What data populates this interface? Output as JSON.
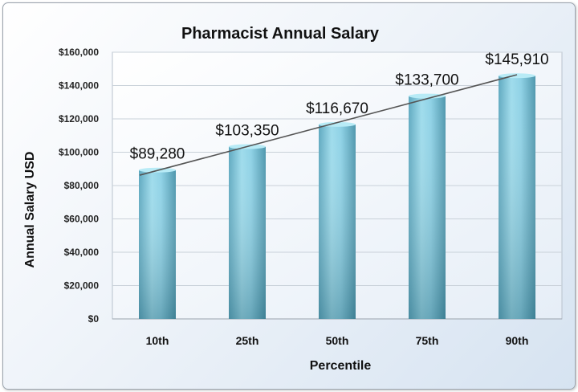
{
  "chart_data": {
    "type": "bar",
    "title": "Pharmacist Annual Salary",
    "xlabel": "Percentile",
    "ylabel": "Annual Salary USD",
    "categories": [
      "10th",
      "25th",
      "50th",
      "75th",
      "90th"
    ],
    "values": [
      89280,
      103350,
      116670,
      133700,
      145910
    ],
    "data_labels": [
      "$89,280",
      "$103,350",
      "$116,670",
      "$133,700",
      "$145,910"
    ],
    "ylim": [
      0,
      160000
    ],
    "yticks": [
      0,
      20000,
      40000,
      60000,
      80000,
      100000,
      120000,
      140000,
      160000
    ],
    "ytick_labels": [
      "$0",
      "$20,000",
      "$40,000",
      "$60,000",
      "$80,000",
      "$100,000",
      "$120,000",
      "$140,000",
      "$160,000"
    ],
    "trendline": "linear",
    "grid": true,
    "bar_color": "#7ec8dc",
    "legend": "none"
  }
}
